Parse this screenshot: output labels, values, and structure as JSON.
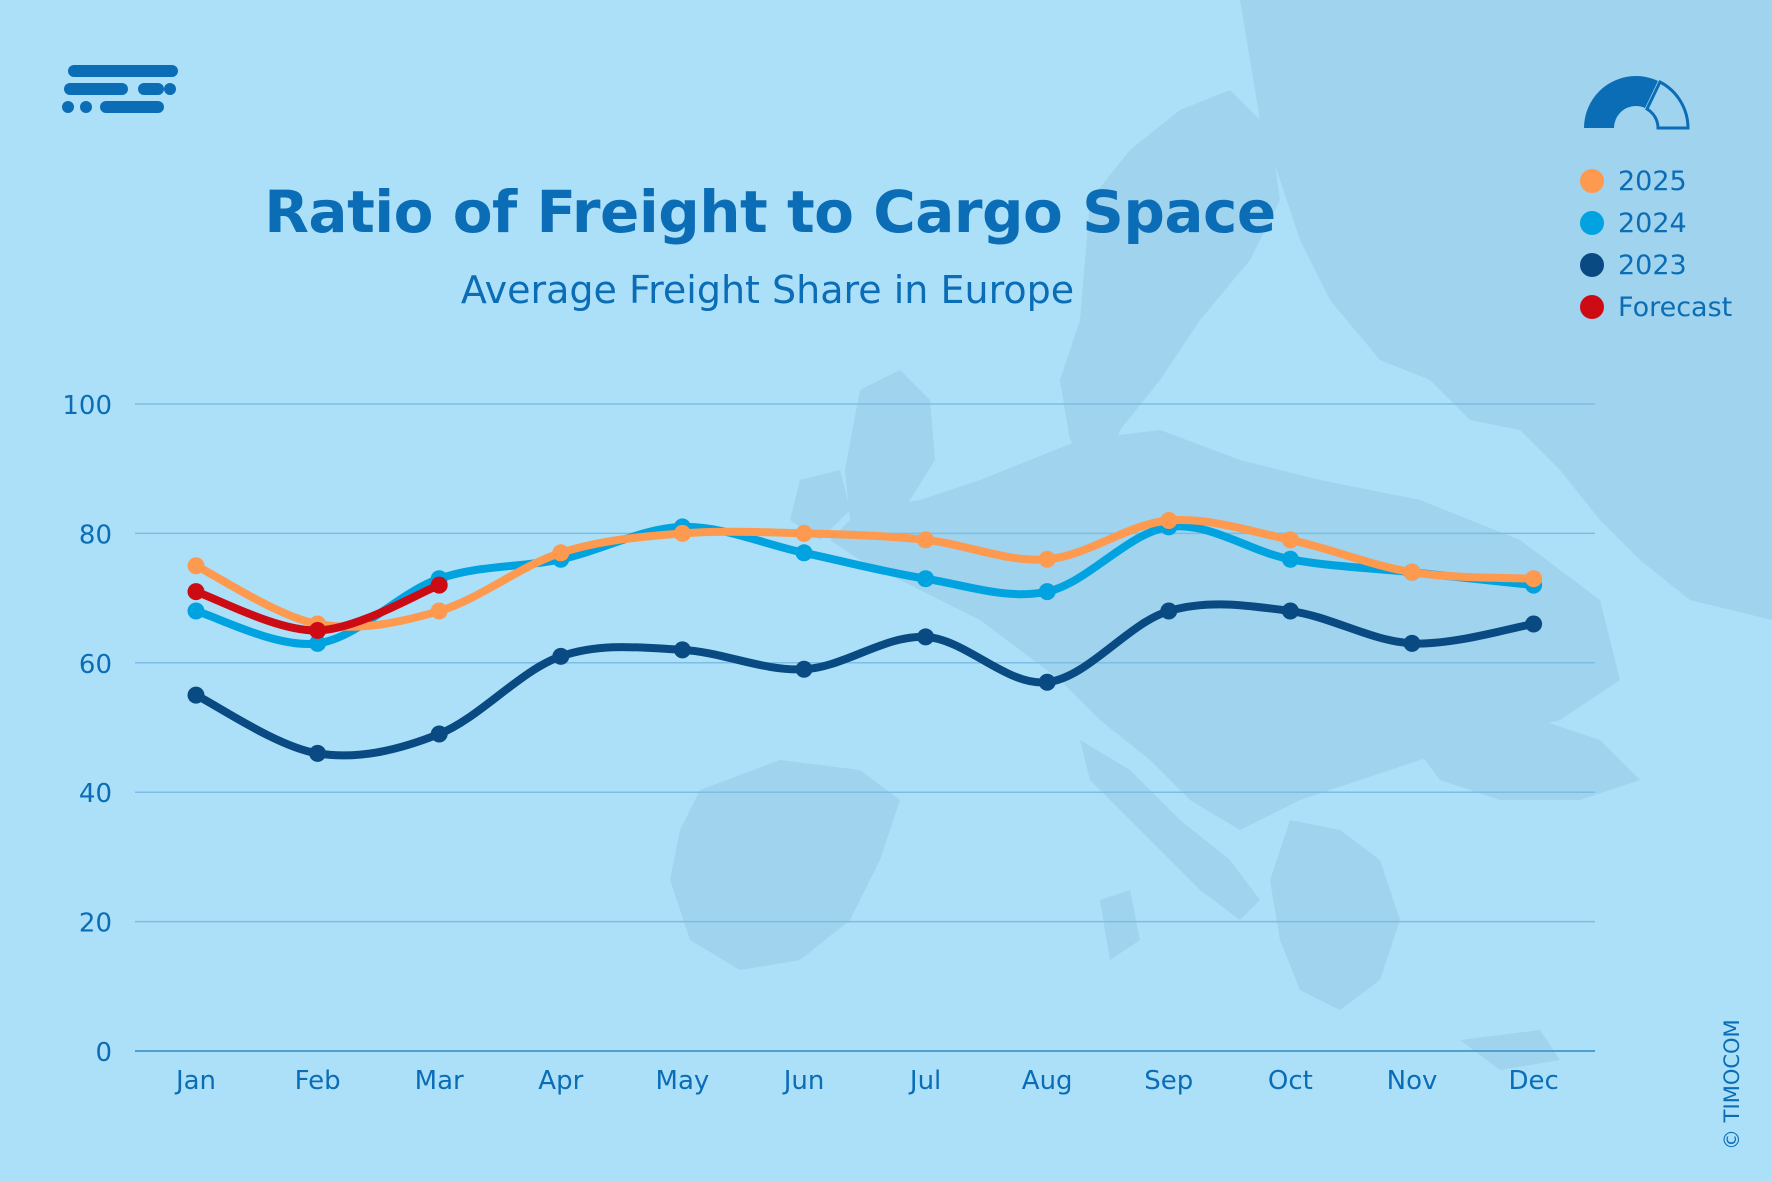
{
  "header": {
    "title": "Ratio of Freight to Cargo Space",
    "subtitle": "Average Freight Share in Europe"
  },
  "icons": {
    "logo": "timocom-logo",
    "gauge": "gauge-icon"
  },
  "colors": {
    "background": "#ace0f8",
    "accent": "#0b6db6",
    "series_2025": "#fd9a50",
    "series_2024": "#00a3e0",
    "series_2023": "#0a4a82",
    "forecast": "#cc0b14"
  },
  "credit": "© TIMOCOM",
  "chart_data": {
    "type": "line",
    "title": "Ratio of Freight to Cargo Space",
    "subtitle": "Average Freight Share in Europe",
    "categories": [
      "Jan",
      "Feb",
      "Mar",
      "Apr",
      "May",
      "Jun",
      "Jul",
      "Aug",
      "Sep",
      "Oct",
      "Nov",
      "Dec"
    ],
    "ylim": [
      0,
      100
    ],
    "yticks": [
      0,
      20,
      40,
      60,
      80,
      100
    ],
    "grid": true,
    "legend_position": "top-right",
    "series": [
      {
        "name": "2025",
        "color": "#fd9a50",
        "values": [
          75,
          66,
          68,
          77,
          80,
          80,
          79,
          76,
          82,
          79,
          74,
          73
        ]
      },
      {
        "name": "2024",
        "color": "#00a3e0",
        "values": [
          68,
          63,
          73,
          76,
          81,
          77,
          73,
          71,
          81,
          76,
          74,
          72
        ]
      },
      {
        "name": "2023",
        "color": "#0a4a82",
        "values": [
          55,
          46,
          49,
          61,
          62,
          59,
          64,
          57,
          68,
          68,
          63,
          66
        ]
      },
      {
        "name": "Forecast",
        "color": "#cc0b14",
        "values": [
          71,
          65,
          72,
          null,
          null,
          null,
          null,
          null,
          null,
          null,
          null,
          null
        ]
      }
    ]
  }
}
